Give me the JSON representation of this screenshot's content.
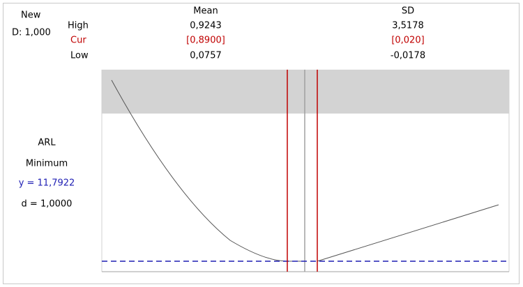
{
  "header": {
    "new": "New",
    "d": "D: 1,000"
  },
  "rows": {
    "high": "High",
    "cur": "Cur",
    "low": "Low"
  },
  "columns": [
    {
      "name": "Mean",
      "high": "0,9243",
      "cur": "[0,8900]",
      "low": "0,0757"
    },
    {
      "name": "SD",
      "high": "3,5178",
      "cur": "[0,020]",
      "low": "-0,0178"
    }
  ],
  "response": {
    "name": "ARL",
    "goal": "Minimum",
    "y": "y = 11,7922",
    "d": "d = 1,0000"
  }
}
